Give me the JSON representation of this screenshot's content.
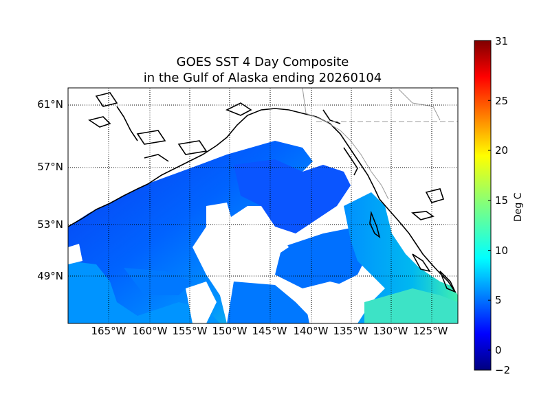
{
  "title": {
    "line1": "GOES SST 4 Day Composite",
    "line2": "in the Gulf of Alaska ending 20260104"
  },
  "map": {
    "region": "Gulf of Alaska",
    "lat_range": [
      46,
      62
    ],
    "lon_range": [
      -172,
      -122
    ],
    "lat_labels": [
      "61°N",
      "57°N",
      "53°N",
      "49°N"
    ],
    "lon_labels": [
      "165°W",
      "160°W",
      "155°W",
      "150°W",
      "145°W",
      "140°W",
      "135°W",
      "130°W",
      "125°W"
    ],
    "sst_gradient_deg_c": {
      "northwest_gulf": 5,
      "central_gulf": 6,
      "southeast_near_coast": 10
    },
    "colors": {
      "cloud_mask": "#ffffff",
      "coastline": "#000000",
      "borders": "#999999",
      "gridlines": "#000000"
    }
  },
  "colorbar": {
    "label": "Deg C",
    "min": -2,
    "max": 31,
    "ticks": [
      "31",
      "25",
      "20",
      "15",
      "10",
      "5",
      "0",
      "−2"
    ],
    "colormap": "jet"
  }
}
